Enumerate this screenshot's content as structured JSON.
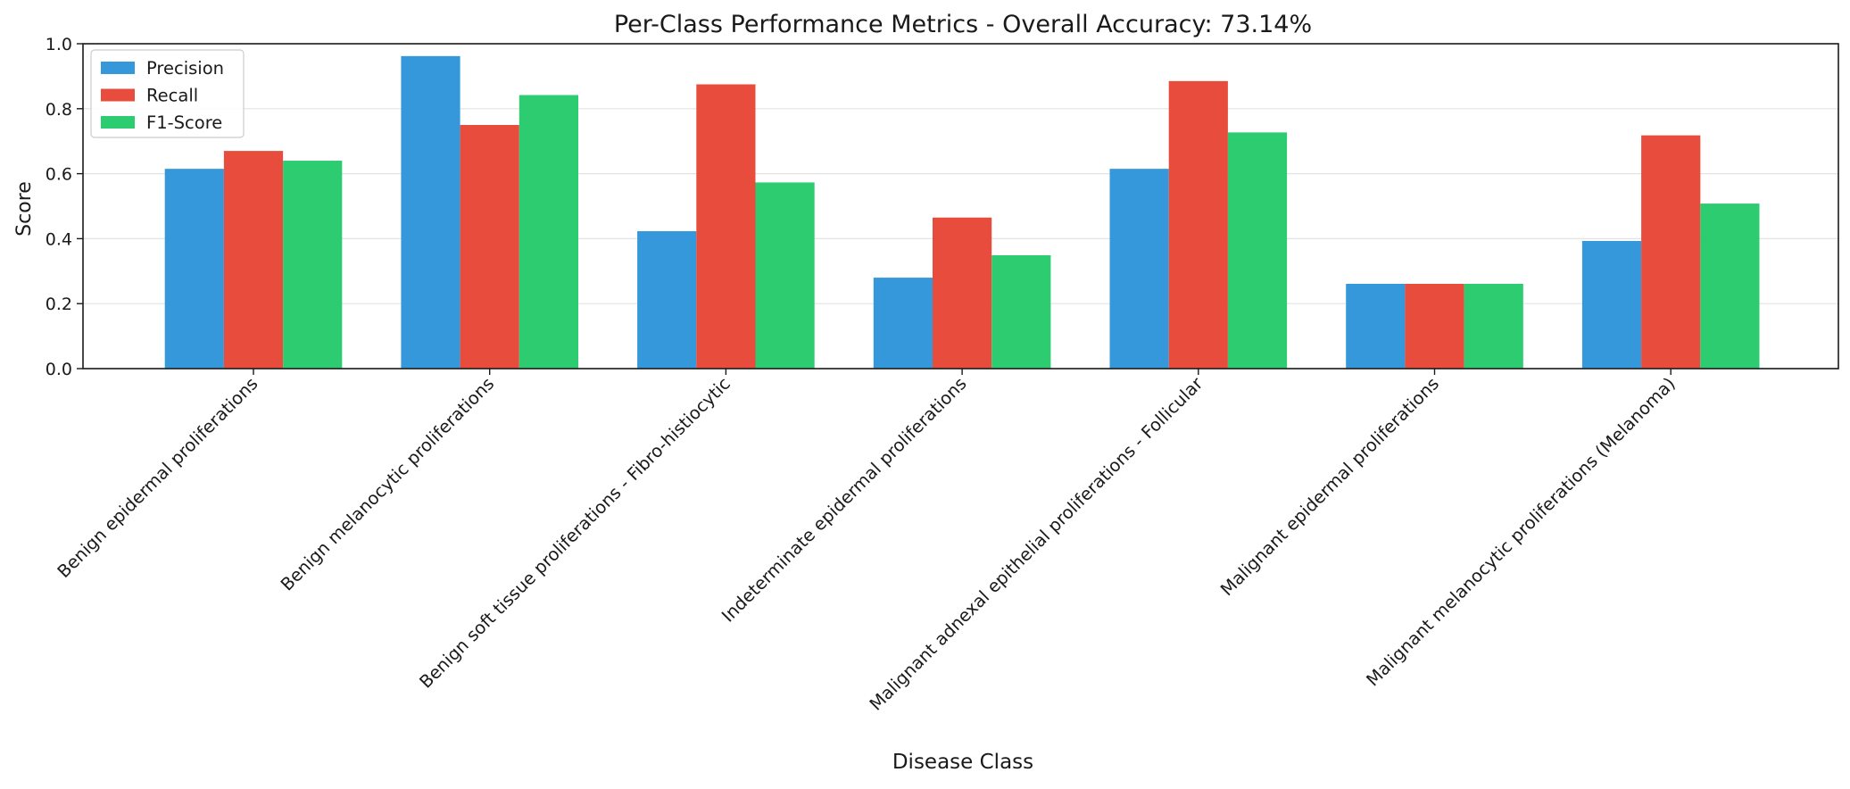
{
  "chart_data": {
    "type": "bar",
    "title": "Per-Class Performance Metrics - Overall Accuracy: 73.14%",
    "xlabel": "Disease Class",
    "ylabel": "Score",
    "ylim": [
      0,
      1.0
    ],
    "yticks": [
      "0.0",
      "0.2",
      "0.4",
      "0.6",
      "0.8",
      "1.0"
    ],
    "grid": "horizontal",
    "legend_position": "top-left",
    "categories": [
      "Benign epidermal proliferations",
      "Benign melanocytic proliferations",
      "Benign soft tissue proliferations - Fibro-histiocytic",
      "Indeterminate epidermal proliferations",
      "Malignant adnexal epithelial proliferations - Follicular",
      "Malignant epidermal proliferations",
      "Malignant melanocytic proliferations (Melanoma)"
    ],
    "series": [
      {
        "name": "Precision",
        "color": "#3598DB",
        "values": [
          0.615,
          0.962,
          0.423,
          0.28,
          0.615,
          0.261,
          0.393
        ]
      },
      {
        "name": "Recall",
        "color": "#E74C3C",
        "values": [
          0.67,
          0.75,
          0.875,
          0.465,
          0.885,
          0.261,
          0.718
        ]
      },
      {
        "name": "F1-Score",
        "color": "#2ECC71",
        "values": [
          0.64,
          0.842,
          0.573,
          0.349,
          0.727,
          0.261,
          0.508
        ]
      }
    ]
  }
}
